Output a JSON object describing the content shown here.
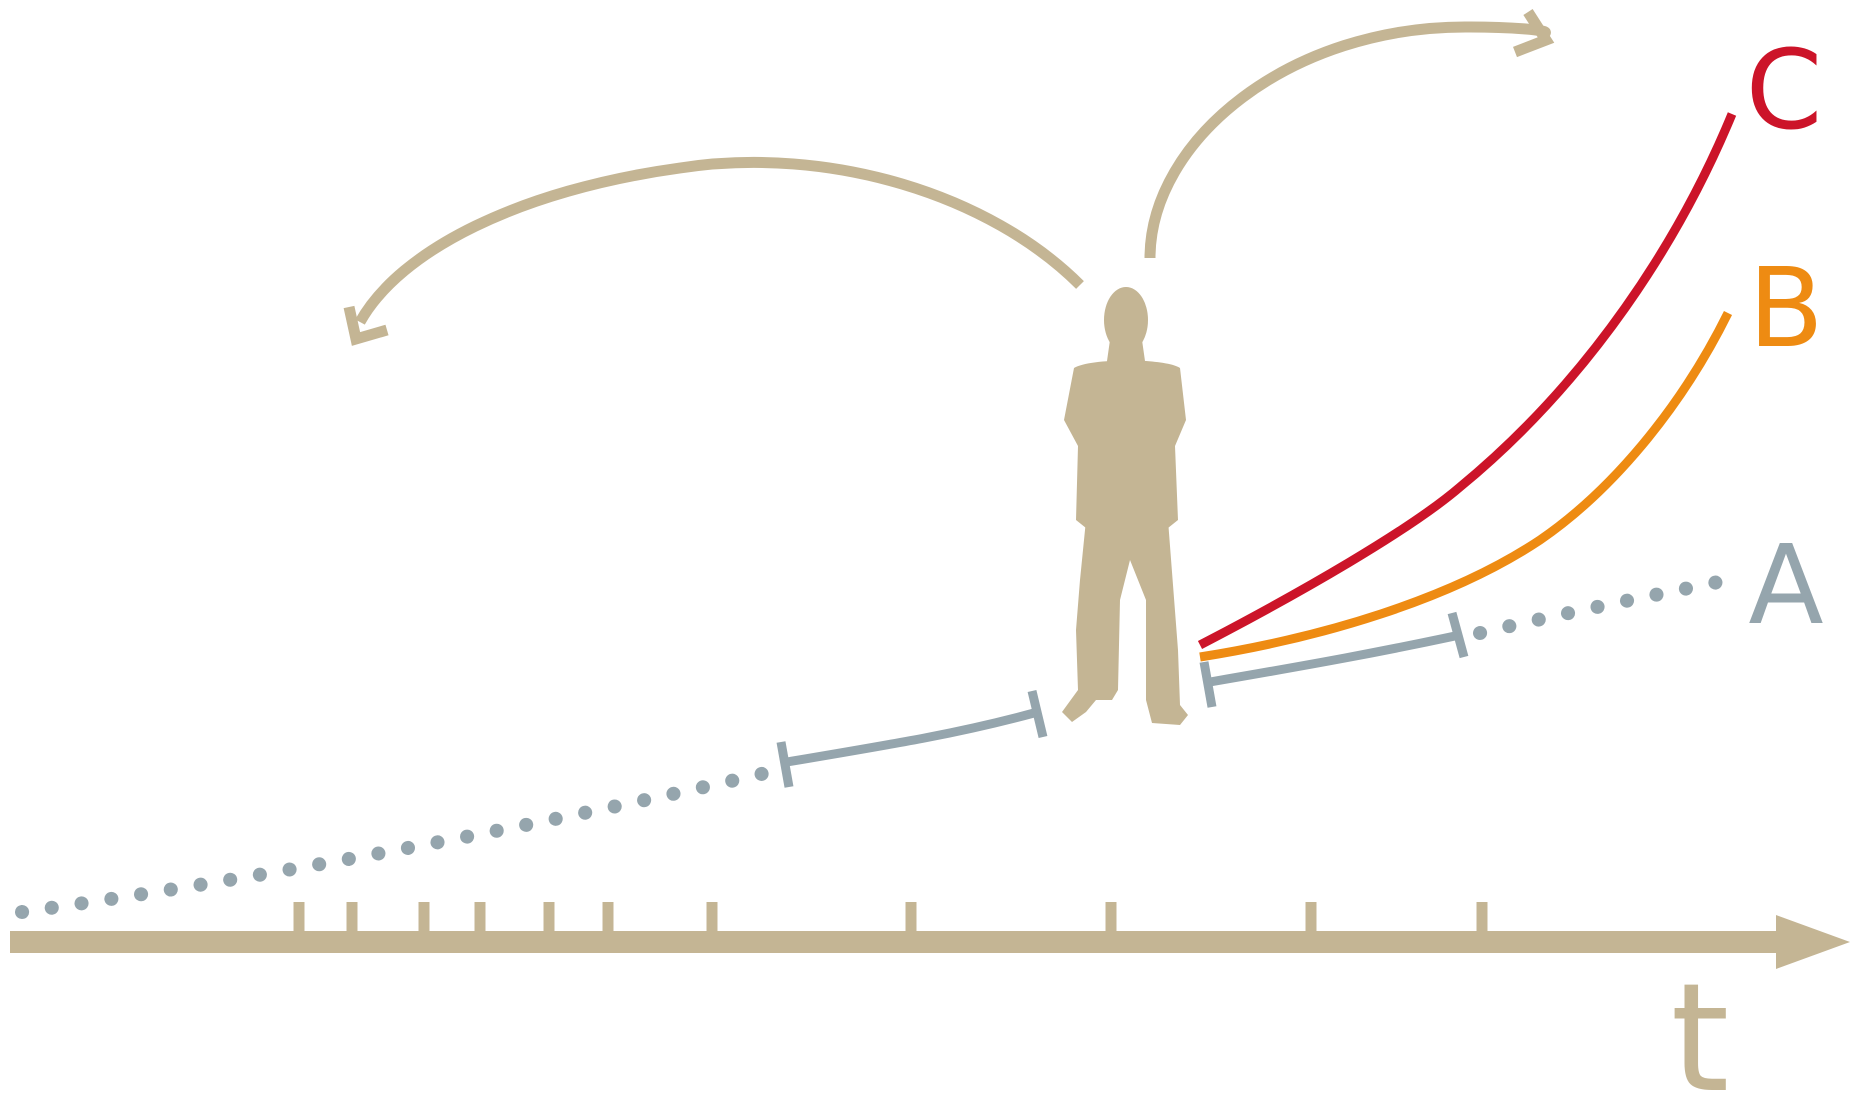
{
  "labels": {
    "time_axis": "t",
    "path_a": "A",
    "path_b": "B",
    "path_c": "C"
  },
  "colors": {
    "axis": "#c4b594",
    "path_a": "#95a5ad",
    "path_b": "#ee8b12",
    "path_c": "#cc1429",
    "figure": "#c4b594"
  },
  "icons": {
    "figure": "standing-person-silhouette",
    "arrow_back": "curved-arrow-back",
    "arrow_forward": "curved-arrow-forward"
  }
}
